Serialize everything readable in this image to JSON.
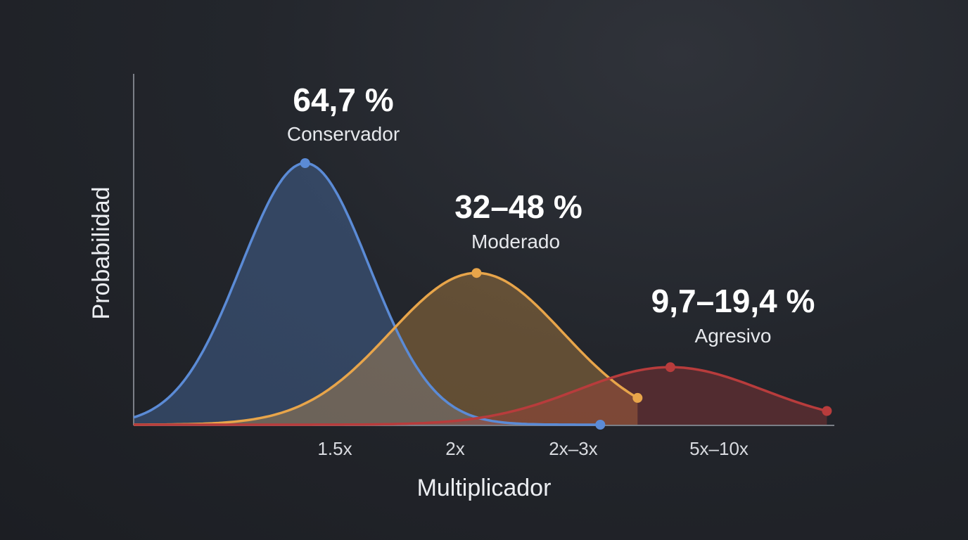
{
  "chart_data": {
    "type": "area",
    "xlabel": "Multiplicador",
    "ylabel": "Probabilidad",
    "x_ticks": [
      "1.5x",
      "2x",
      "2x–3x",
      "5x–10x"
    ],
    "grid": false,
    "legend": "none",
    "series": [
      {
        "label": "64,7 %",
        "name": "Conservador",
        "color": "#5b8bd6",
        "peak_probability_pct": 64.7,
        "peak_x_pos": 1.15,
        "spread": 0.43,
        "start_x_pos": 0,
        "end_x_pos": 3.13,
        "relative_height": 1.0
      },
      {
        "label": "32–48 %",
        "name": "Moderado",
        "color": "#e8a54a",
        "peak_probability_pct_range": [
          32,
          48
        ],
        "peak_x_pos": 2.3,
        "spread": 0.58,
        "start_x_pos": 0,
        "end_x_pos": 3.38,
        "relative_height": 0.58
      },
      {
        "label": "9,7–19,4 %",
        "name": "Agresivo",
        "color": "#b83c3c",
        "peak_probability_pct_range": [
          9.7,
          19.4
        ],
        "peam_note_free": true,
        "peak_x_pos": 3.6,
        "spread": 0.62,
        "start_x_pos": 0,
        "end_x_pos": 4.65,
        "relative_height": 0.22
      }
    ]
  }
}
